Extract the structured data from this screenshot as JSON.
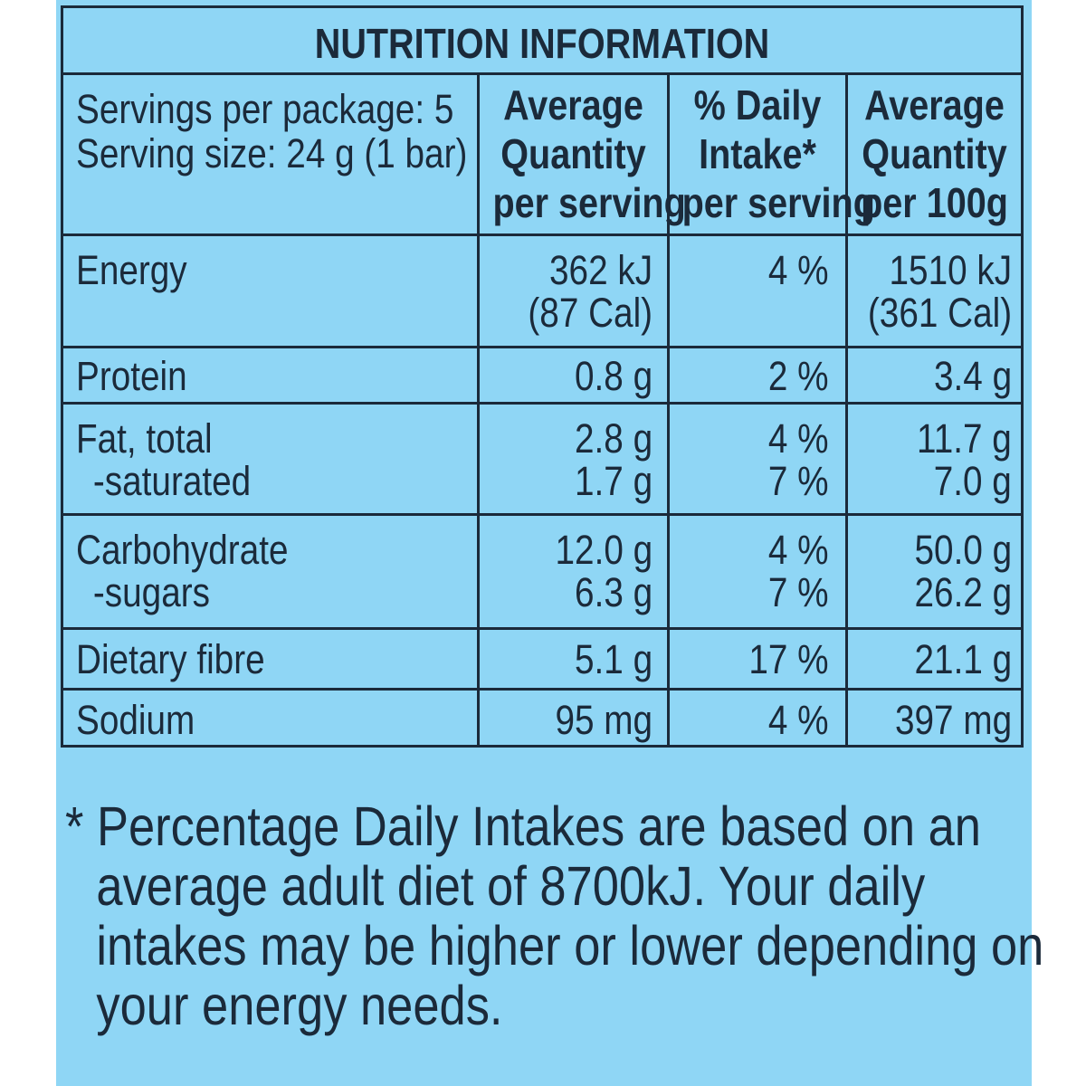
{
  "title": "NUTRITION INFORMATION",
  "servings_per_package": "Servings per package: 5",
  "serving_size": "Serving size: 24 g (1 bar)",
  "headers": {
    "per_serving": [
      "Average",
      "Quantity",
      "per serving"
    ],
    "daily_intake": [
      "% Daily",
      "Intake*",
      "per serving"
    ],
    "per_100g": [
      "Average",
      "Quantity",
      "per 100g"
    ]
  },
  "rows": {
    "energy": {
      "label": "Energy",
      "serving": [
        "362 kJ",
        "(87 Cal)"
      ],
      "di": "4 %",
      "per100": [
        "1510 kJ",
        "(361 Cal)"
      ]
    },
    "protein": {
      "label": "Protein",
      "serving": "0.8 g",
      "di": "2 %",
      "per100": "3.4 g"
    },
    "fat": {
      "label": "Fat, total",
      "serving": "2.8 g",
      "di": "4 %",
      "per100": "11.7 g"
    },
    "saturated": {
      "label": "-saturated",
      "serving": "1.7 g",
      "di": "7 %",
      "per100": "7.0 g"
    },
    "carbohydrate": {
      "label": "Carbohydrate",
      "serving": "12.0 g",
      "di": "4 %",
      "per100": "50.0 g"
    },
    "sugars": {
      "label": "-sugars",
      "serving": "6.3 g",
      "di": "7 %",
      "per100": "26.2 g"
    },
    "fibre": {
      "label": "Dietary fibre",
      "serving": "5.1 g",
      "di": "17 %",
      "per100": "21.1 g"
    },
    "sodium": {
      "label": "Sodium",
      "serving": "95 mg",
      "di": "4 %",
      "per100": "397 mg"
    }
  },
  "footnote": [
    "* Percentage Daily Intakes are based on an",
    "average adult diet of 8700kJ. Your daily",
    "intakes may be higher or lower depending on",
    "your energy needs."
  ],
  "colors": {
    "background": "#8fd6f5",
    "ink": "#1b2a3a"
  }
}
